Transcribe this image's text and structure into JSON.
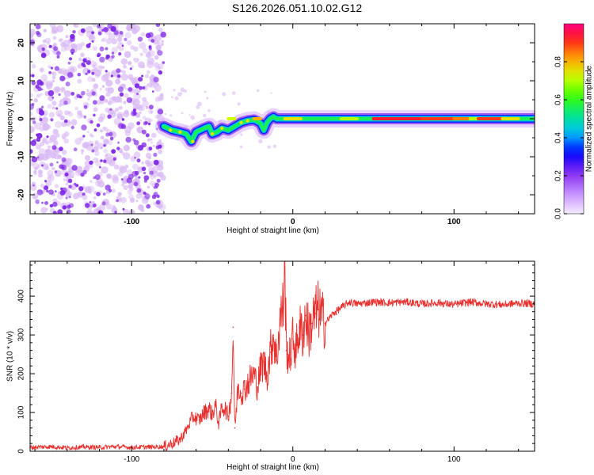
{
  "title": "S126.2026.051.10.02.G12",
  "colors": {
    "snr_line": "#e8302e",
    "frame": "#000000",
    "noise_dark": "#7b22e6",
    "noise_light": "#d9b9f5"
  },
  "chart_data": [
    {
      "type": "heatmap",
      "title": "S126.2026.051.10.02.G12",
      "xlabel": "Height of straight line (km)",
      "ylabel": "Frequency (Hz)",
      "xlim": [
        -163,
        150
      ],
      "ylim": [
        -25,
        25
      ],
      "xticks": [
        -100,
        0,
        100
      ],
      "xtick_labels": [
        "-100",
        "0",
        "100"
      ],
      "yticks": [
        20,
        10,
        0,
        -10,
        -20
      ],
      "ytick_labels": [
        "20",
        "10",
        "0",
        "-10",
        "-20"
      ],
      "noise_region_x": [
        -163,
        -80
      ],
      "signal_track": {
        "x": [
          -80,
          -75,
          -70,
          -66,
          -63,
          -60,
          -55,
          -52,
          -50,
          -47,
          -44,
          -40,
          -36,
          -32,
          -28,
          -24,
          -20,
          -18,
          -16,
          -14,
          -12,
          -10,
          -5,
          0,
          10,
          20,
          30,
          40,
          50,
          60,
          80,
          100,
          120,
          140,
          150
        ],
        "frequency_hz": [
          -2,
          -3,
          -3.5,
          -4,
          -6,
          -3.5,
          -2.5,
          -2,
          -4,
          -3.5,
          -2.5,
          -3,
          -2,
          -1,
          -0.5,
          -0.3,
          -1.2,
          -3,
          -1,
          0,
          0.5,
          0,
          0,
          0,
          0,
          0,
          0,
          0,
          0,
          0,
          0,
          0,
          0,
          0,
          0
        ]
      },
      "colorbar": {
        "label": "Normalized spectral amplitude",
        "range": [
          0,
          1
        ],
        "ticks": [
          0.0,
          0.2,
          0.4,
          0.6,
          0.8
        ],
        "tick_labels": [
          "0.0",
          "0.2",
          "0.4",
          "0.6",
          "0.8"
        ]
      }
    },
    {
      "type": "line",
      "xlabel": "Height of straight line (km)",
      "ylabel": "SNR (10 * v/v)",
      "xlim": [
        -163,
        150
      ],
      "ylim": [
        0,
        490
      ],
      "xticks": [
        -100,
        0,
        100
      ],
      "xtick_labels": [
        "-100",
        "0",
        "100"
      ],
      "yticks": [
        0,
        100,
        200,
        300,
        400
      ],
      "ytick_labels": [
        "0",
        "100",
        "200",
        "300",
        "400"
      ],
      "series": [
        {
          "name": "SNR",
          "x": [
            -163,
            -150,
            -140,
            -130,
            -120,
            -110,
            -100,
            -90,
            -80,
            -75,
            -70,
            -66,
            -62,
            -58,
            -55,
            -52,
            -50,
            -48,
            -46,
            -44,
            -42,
            -40,
            -38,
            -37,
            -36,
            -35,
            -34,
            -32,
            -30,
            -28,
            -26,
            -24,
            -22,
            -20,
            -18,
            -16,
            -14,
            -12,
            -10,
            -8,
            -6,
            -5,
            -4,
            -3,
            -2,
            0,
            2,
            4,
            6,
            8,
            10,
            12,
            14,
            16,
            18,
            20,
            25,
            30,
            35,
            40,
            50,
            60,
            70,
            80,
            90,
            100,
            110,
            120,
            130,
            140,
            150
          ],
          "y": [
            10,
            12,
            9,
            11,
            10,
            12,
            10,
            11,
            12,
            20,
            30,
            55,
            90,
            80,
            100,
            110,
            95,
            120,
            70,
            115,
            110,
            90,
            150,
            320,
            60,
            110,
            170,
            150,
            160,
            175,
            190,
            200,
            165,
            215,
            230,
            195,
            255,
            300,
            235,
            340,
            370,
            490,
            260,
            250,
            240,
            290,
            260,
            320,
            300,
            350,
            305,
            330,
            355,
            365,
            345,
            330,
            355,
            370,
            385,
            380,
            385,
            383,
            385,
            380,
            383,
            378,
            385,
            380,
            378,
            382,
            380
          ]
        }
      ]
    }
  ]
}
